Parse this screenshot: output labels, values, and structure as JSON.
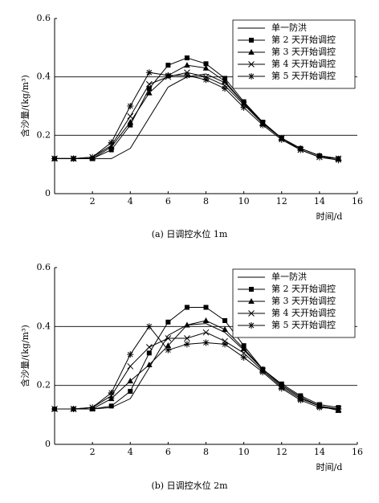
{
  "chart_data": [
    {
      "type": "line",
      "y_label": "含沙量/(kg/m³)",
      "x_label": "时间/d",
      "caption": "(a) 日调控水位 1m",
      "x": [
        0,
        1,
        2,
        3,
        4,
        5,
        6,
        7,
        8,
        9,
        10,
        11,
        12,
        13,
        14,
        15
      ],
      "xlim": [
        0,
        16
      ],
      "xticks": [
        2,
        4,
        6,
        8,
        10,
        12,
        14,
        16
      ],
      "ylim": [
        0,
        0.6
      ],
      "yticks": [
        0,
        0.2,
        0.4,
        0.6
      ],
      "grid": true,
      "legend": "upper right",
      "series": [
        {
          "name": "单一防洪",
          "color": "#000000",
          "marker": "none",
          "values": [
            0.12,
            0.12,
            0.12,
            0.12,
            0.155,
            0.26,
            0.365,
            0.4,
            0.41,
            0.38,
            0.31,
            0.245,
            0.19,
            0.155,
            0.13,
            0.12
          ]
        },
        {
          "name": "第 2 天开始调控",
          "color": "#000000",
          "marker": "square",
          "values": [
            0.12,
            0.12,
            0.12,
            0.15,
            0.235,
            0.36,
            0.44,
            0.465,
            0.445,
            0.395,
            0.315,
            0.245,
            0.19,
            0.155,
            0.13,
            0.12
          ]
        },
        {
          "name": "第 3 天开始调控",
          "color": "#000000",
          "marker": "triangle",
          "values": [
            0.12,
            0.12,
            0.12,
            0.16,
            0.245,
            0.345,
            0.405,
            0.44,
            0.43,
            0.385,
            0.31,
            0.24,
            0.19,
            0.155,
            0.13,
            0.12
          ]
        },
        {
          "name": "第 4 天开始调控",
          "color": "#000000",
          "marker": "x",
          "values": [
            0.12,
            0.12,
            0.125,
            0.165,
            0.265,
            0.375,
            0.4,
            0.415,
            0.4,
            0.37,
            0.305,
            0.24,
            0.19,
            0.15,
            0.125,
            0.12
          ]
        },
        {
          "name": "第 5 天开始调控",
          "color": "#000000",
          "marker": "star",
          "values": [
            0.12,
            0.12,
            0.125,
            0.175,
            0.3,
            0.415,
            0.405,
            0.405,
            0.39,
            0.36,
            0.295,
            0.235,
            0.185,
            0.15,
            0.125,
            0.115
          ]
        }
      ]
    },
    {
      "type": "line",
      "y_label": "含沙量/(kg/m³)",
      "x_label": "时间/d",
      "caption": "(b) 日调控水位 2m",
      "x": [
        0,
        1,
        2,
        3,
        4,
        5,
        6,
        7,
        8,
        9,
        10,
        11,
        12,
        13,
        14,
        15
      ],
      "xlim": [
        0,
        16
      ],
      "xticks": [
        2,
        4,
        6,
        8,
        10,
        12,
        14,
        16
      ],
      "ylim": [
        0,
        0.6
      ],
      "yticks": [
        0,
        0.2,
        0.4,
        0.6
      ],
      "grid": true,
      "legend": "upper right",
      "series": [
        {
          "name": "单一防洪",
          "color": "#000000",
          "marker": "none",
          "values": [
            0.12,
            0.12,
            0.12,
            0.125,
            0.155,
            0.26,
            0.37,
            0.405,
            0.41,
            0.38,
            0.32,
            0.255,
            0.2,
            0.16,
            0.13,
            0.12
          ]
        },
        {
          "name": "第 2 天开始调控",
          "color": "#000000",
          "marker": "square",
          "values": [
            0.12,
            0.12,
            0.12,
            0.13,
            0.18,
            0.31,
            0.415,
            0.465,
            0.465,
            0.42,
            0.335,
            0.255,
            0.205,
            0.165,
            0.135,
            0.125
          ]
        },
        {
          "name": "第 3 天开始调控",
          "color": "#000000",
          "marker": "triangle",
          "values": [
            0.12,
            0.12,
            0.12,
            0.155,
            0.215,
            0.27,
            0.335,
            0.405,
            0.42,
            0.39,
            0.325,
            0.255,
            0.2,
            0.16,
            0.13,
            0.115
          ]
        },
        {
          "name": "第 4 天开始调控",
          "color": "#000000",
          "marker": "x",
          "values": [
            0.12,
            0.12,
            0.125,
            0.165,
            0.265,
            0.33,
            0.36,
            0.36,
            0.38,
            0.35,
            0.31,
            0.25,
            0.195,
            0.155,
            0.13,
            0.12
          ]
        },
        {
          "name": "第 5 天开始调控",
          "color": "#000000",
          "marker": "star",
          "values": [
            0.12,
            0.12,
            0.125,
            0.175,
            0.305,
            0.4,
            0.32,
            0.34,
            0.345,
            0.34,
            0.295,
            0.245,
            0.19,
            0.15,
            0.125,
            0.12
          ]
        }
      ]
    }
  ]
}
